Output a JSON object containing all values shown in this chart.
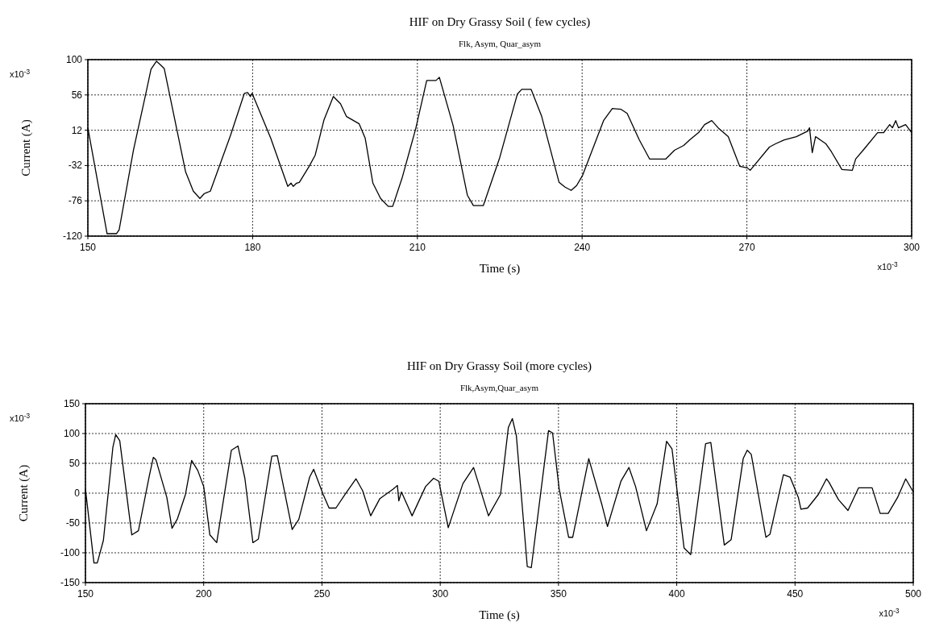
{
  "chart_data": [
    {
      "type": "line",
      "title": "HIF on  Dry Grassy Soil ( few cycles)",
      "subtitle": "Flk, Asym, Quar_asym",
      "xlabel": "Time (s)",
      "ylabel": "Current (A)",
      "annotations": [
        "x10$^{-3}$",
        "x10$^{-3}$"
      ],
      "xlim": [
        150,
        300
      ],
      "xticks": [
        150,
        180,
        210,
        240,
        270,
        300
      ],
      "ylim": [
        -120,
        100
      ],
      "yticks": [
        -120,
        -76,
        -32,
        12,
        56,
        100
      ],
      "grid": true,
      "marker": "none",
      "line_style": "solid",
      "series": [
        {
          "color": "#000000",
          "x": [
            150,
            153.5,
            155.2,
            155.7,
            158.3,
            160.5,
            161.5,
            162.5,
            163.3,
            163.9,
            164.9,
            167.8,
            169.2,
            170.4,
            171.2,
            172.3,
            176,
            178.5,
            179.1,
            179.6,
            179.9,
            180.7,
            183.3,
            184.7,
            186.4,
            187,
            187.4,
            188,
            188.5,
            190.3,
            191.4,
            193,
            194.7,
            196,
            197.1,
            199.4,
            200.5,
            201.9,
            203.3,
            204.7,
            205.5,
            207.2,
            209.7,
            211.7,
            213.4,
            214,
            216.5,
            219.1,
            220.2,
            222,
            225,
            228.2,
            229,
            230.7,
            232.6,
            235.8,
            236.9,
            238,
            239,
            240.1,
            243.9,
            245.5,
            247.1,
            248.2,
            250.4,
            252.3,
            255.2,
            256.8,
            258.5,
            259.6,
            261.2,
            262.3,
            263.6,
            264.9,
            266.6,
            268.7,
            270.1,
            270.6,
            274.1,
            275.2,
            276.8,
            279,
            281.1,
            281.4,
            281.9,
            282.5,
            284.4,
            285.4,
            287.3,
            289.2,
            289.8,
            291.4,
            293.8,
            294.9,
            296,
            296.5,
            297.1,
            297.6,
            298.9,
            300
          ],
          "values": [
            15,
            -117,
            -117,
            -112,
            -13,
            56,
            88,
            98,
            93,
            89,
            56,
            -40,
            -64,
            -73,
            -67,
            -64,
            6,
            58,
            59,
            54,
            58,
            45,
            2,
            -25,
            -58,
            -54,
            -58,
            -54,
            -53,
            -33,
            -19,
            25,
            54,
            45,
            29,
            20,
            2,
            -54,
            -73,
            -83,
            -83,
            -48,
            14,
            74,
            74,
            78,
            18,
            -69,
            -82,
            -82,
            -22,
            57,
            63,
            63,
            30,
            -53,
            -59,
            -63,
            -57,
            -44,
            24,
            39,
            38,
            33,
            0,
            -24,
            -24,
            -13,
            -7,
            0,
            9,
            19,
            24,
            14,
            4,
            -33,
            -35,
            -38,
            -9,
            -5,
            0,
            4,
            11,
            15,
            -16,
            4,
            -5,
            -15,
            -37,
            -38,
            -24,
            -11,
            9,
            9,
            19,
            15,
            24,
            15,
            19,
            9
          ]
        }
      ]
    },
    {
      "type": "line",
      "title": "HIF on Dry Grassy Soil (more cycles)",
      "subtitle": "Flk,Asym,Quar_asym",
      "xlabel": "Time (s)",
      "ylabel": "Current (A)",
      "annotations": [
        "x10$^{-3}$",
        "x10$^{-3}$"
      ],
      "xlim": [
        150,
        500
      ],
      "xticks": [
        150,
        200,
        250,
        300,
        350,
        400,
        450,
        500
      ],
      "ylim": [
        -150,
        150
      ],
      "yticks": [
        -150,
        -100,
        -50,
        0,
        50,
        100,
        150
      ],
      "grid": true,
      "marker": "none",
      "line_style": "solid",
      "series": [
        {
          "color": "#000000",
          "x": [
            150,
            153.6,
            155,
            157.6,
            161.6,
            162.8,
            164.5,
            166.7,
            169.6,
            172.4,
            177,
            178.7,
            179.8,
            184.4,
            186.6,
            188.9,
            192.3,
            194.9,
            197.5,
            200,
            202.6,
            205.5,
            211.7,
            214.5,
            217.4,
            220.8,
            223.1,
            228.8,
            231.1,
            237.4,
            240.2,
            244.8,
            246.5,
            250.5,
            253,
            255.9,
            259.8,
            264.4,
            267.2,
            270.6,
            274.5,
            280.2,
            281.9,
            282.5,
            283.6,
            288.1,
            293.8,
            297.2,
            299.4,
            303.4,
            309.6,
            314.1,
            320.4,
            325.5,
            328.8,
            330.5,
            332.2,
            336.8,
            338.5,
            345.8,
            347.5,
            350.3,
            354.3,
            356,
            362.8,
            368.4,
            370.7,
            376.4,
            379.8,
            382.6,
            387.2,
            391.7,
            395.7,
            398,
            403.1,
            405.9,
            412.2,
            414.4,
            420.1,
            423,
            428.1,
            429.8,
            431.5,
            437.7,
            439.4,
            445.1,
            447.9,
            451.4,
            452.5,
            455.3,
            459.9,
            463.3,
            464.4,
            468.4,
            472.4,
            476.9,
            479.8,
            482.6,
            486,
            489.4,
            493.4,
            496.8,
            500
          ],
          "values": [
            7,
            -117,
            -117,
            -79,
            77,
            98,
            88,
            20,
            -70,
            -63,
            29,
            60,
            56,
            -7,
            -59,
            -43,
            -2,
            55,
            38,
            11,
            -70,
            -83,
            72,
            79,
            25,
            -83,
            -77,
            62,
            63,
            -61,
            -44,
            27,
            40,
            -2,
            -25,
            -25,
            -2,
            24,
            4,
            -38,
            -9,
            7,
            13,
            -13,
            2,
            -38,
            11,
            25,
            20,
            -58,
            16,
            43,
            -38,
            -2,
            110,
            125,
            96,
            -123,
            -125,
            105,
            101,
            7,
            -74,
            -74,
            58,
            -20,
            -56,
            20,
            43,
            11,
            -63,
            -18,
            87,
            74,
            -92,
            -103,
            83,
            85,
            -87,
            -78,
            58,
            72,
            65,
            -74,
            -69,
            31,
            27,
            -7,
            -27,
            -25,
            -2,
            24,
            18,
            -11,
            -29,
            9,
            9,
            9,
            -34,
            -34,
            -7,
            24,
            2
          ]
        }
      ]
    }
  ]
}
